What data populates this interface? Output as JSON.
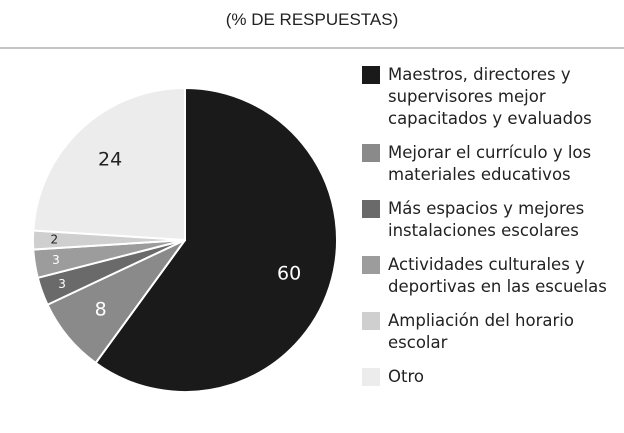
{
  "chart_data": {
    "type": "pie",
    "title": "(% DE RESPUESTAS)",
    "categories": [
      "Maestros, directores y supervisores mejor capacitados y evaluados",
      "Mejorar el currículo y los materiales educativos",
      "Más espacios y mejores instalaciones escolares",
      "Actividades culturales y deportivas en las escuelas",
      "Ampliación del horario escolar",
      "Otro"
    ],
    "values": [
      60,
      8,
      3,
      3,
      2,
      24
    ],
    "colors": [
      "#1a1a1a",
      "#8a8a8a",
      "#6a6a6a",
      "#9c9c9c",
      "#cfcfcf",
      "#ececec"
    ]
  }
}
